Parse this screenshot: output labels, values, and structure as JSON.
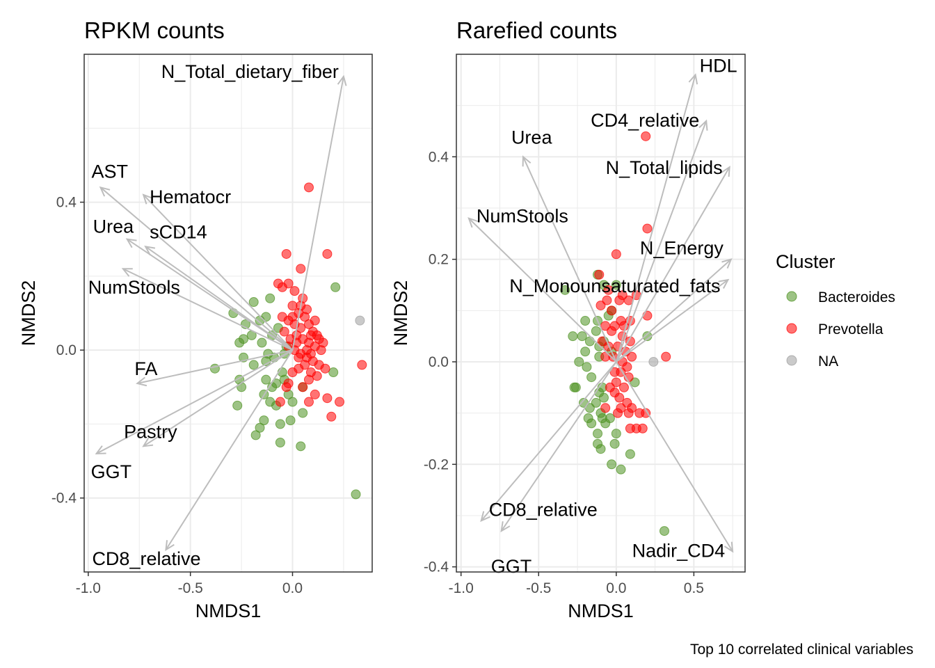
{
  "caption": "Top 10 correlated clinical variables",
  "legend": {
    "title": "Cluster",
    "placement": "right",
    "items": [
      {
        "label": "Bacteroides",
        "color": "#4d9221"
      },
      {
        "label": "Prevotella",
        "color": "#ff0000"
      },
      {
        "label": "NA",
        "color": "#9e9e9e"
      }
    ]
  },
  "chart_data": [
    {
      "type": "scatter",
      "title": "RPKM counts",
      "xlabel": "NMDS1",
      "ylabel": "NMDS2",
      "xticks": [
        -1.0,
        -0.5,
        0.0
      ],
      "xtick_labels": [
        "-1.0",
        "-0.5",
        "0.0"
      ],
      "yticks": [
        -0.4,
        0.0,
        0.4
      ],
      "ytick_labels": [
        "-0.4",
        "0.0",
        "0.4"
      ],
      "xlim": [
        -1.02,
        0.39
      ],
      "ylim": [
        -0.6,
        0.8
      ],
      "grid": true,
      "arrows": [
        {
          "label": "N_Total_dietary_fiber",
          "x": 0.25,
          "y": 0.74
        },
        {
          "label": "AST",
          "x": -0.94,
          "y": 0.44
        },
        {
          "label": "Hematocr",
          "x": -0.73,
          "y": 0.42
        },
        {
          "label": "Urea",
          "x": -0.81,
          "y": 0.3
        },
        {
          "label": "sCD14",
          "x": -0.72,
          "y": 0.28
        },
        {
          "label": "NumStools",
          "x": -0.83,
          "y": 0.22
        },
        {
          "label": "FA",
          "x": -0.76,
          "y": -0.09
        },
        {
          "label": "Pastry",
          "x": -0.73,
          "y": -0.26
        },
        {
          "label": "GGT",
          "x": -0.96,
          "y": -0.28
        },
        {
          "label": "CD8_relative",
          "x": -0.62,
          "y": -0.54
        }
      ],
      "series": [
        {
          "name": "Bacteroides",
          "points": [
            [
              -0.38,
              -0.05
            ],
            [
              -0.29,
              0.1
            ],
            [
              -0.19,
              0.13
            ],
            [
              -0.11,
              0.14
            ],
            [
              0.21,
              0.17
            ],
            [
              -0.26,
              0.02
            ],
            [
              -0.23,
              0.07
            ],
            [
              -0.24,
              0.03
            ],
            [
              -0.16,
              0.08
            ],
            [
              -0.13,
              0.09
            ],
            [
              -0.2,
              0.04
            ],
            [
              -0.24,
              -0.02
            ],
            [
              -0.19,
              -0.04
            ],
            [
              -0.13,
              -0.03
            ],
            [
              -0.09,
              -0.02
            ],
            [
              -0.12,
              -0.01
            ],
            [
              -0.04,
              -0.01
            ],
            [
              -0.26,
              -0.08
            ],
            [
              -0.25,
              -0.1
            ],
            [
              -0.13,
              -0.08
            ],
            [
              -0.1,
              -0.1
            ],
            [
              -0.08,
              -0.09
            ],
            [
              -0.05,
              -0.06
            ],
            [
              -0.04,
              -0.08
            ],
            [
              -0.02,
              -0.12
            ],
            [
              0.0,
              -0.14
            ],
            [
              -0.11,
              -0.14
            ],
            [
              -0.14,
              -0.12
            ],
            [
              -0.08,
              -0.15
            ],
            [
              -0.27,
              -0.15
            ],
            [
              -0.14,
              -0.19
            ],
            [
              -0.16,
              -0.21
            ],
            [
              -0.01,
              -0.19
            ],
            [
              0.05,
              -0.17
            ],
            [
              -0.06,
              -0.2
            ],
            [
              -0.18,
              -0.23
            ],
            [
              -0.06,
              -0.25
            ],
            [
              0.04,
              -0.26
            ],
            [
              0.2,
              -0.06
            ],
            [
              0.31,
              -0.39
            ],
            [
              -0.15,
              0.02
            ],
            [
              -0.03,
              0.01
            ],
            [
              -0.07,
              0.06
            ],
            [
              -0.1,
              0.04
            ],
            [
              0.05,
              -0.1
            ]
          ]
        },
        {
          "name": "Prevotella",
          "points": [
            [
              0.08,
              0.44
            ],
            [
              -0.03,
              0.26
            ],
            [
              0.04,
              0.22
            ],
            [
              0.17,
              0.26
            ],
            [
              -0.07,
              0.18
            ],
            [
              -0.05,
              0.17
            ],
            [
              -0.02,
              0.18
            ],
            [
              0.01,
              0.16
            ],
            [
              0.05,
              0.14
            ],
            [
              0.0,
              0.12
            ],
            [
              0.03,
              0.1
            ],
            [
              0.07,
              0.11
            ],
            [
              -0.05,
              0.09
            ],
            [
              -0.02,
              0.08
            ],
            [
              0.01,
              0.07
            ],
            [
              0.04,
              0.06
            ],
            [
              0.08,
              0.07
            ],
            [
              0.1,
              0.05
            ],
            [
              0.12,
              0.04
            ],
            [
              -0.04,
              0.05
            ],
            [
              0.02,
              0.04
            ],
            [
              0.05,
              0.03
            ],
            [
              0.08,
              0.02
            ],
            [
              0.11,
              0.01
            ],
            [
              0.14,
              0.0
            ],
            [
              -0.02,
              0.01
            ],
            [
              0.01,
              0.0
            ],
            [
              0.04,
              -0.01
            ],
            [
              0.07,
              -0.02
            ],
            [
              0.1,
              -0.03
            ],
            [
              0.13,
              -0.04
            ],
            [
              0.06,
              -0.04
            ],
            [
              0.03,
              -0.05
            ],
            [
              0.09,
              -0.06
            ],
            [
              0.12,
              -0.07
            ],
            [
              0.16,
              -0.05
            ],
            [
              0.34,
              -0.04
            ],
            [
              0.0,
              -0.06
            ],
            [
              0.08,
              -0.08
            ],
            [
              -0.02,
              -0.09
            ],
            [
              0.05,
              -0.1
            ],
            [
              0.11,
              -0.12
            ],
            [
              0.17,
              -0.13
            ],
            [
              0.23,
              -0.14
            ],
            [
              0.19,
              -0.18
            ],
            [
              0.08,
              -0.14
            ],
            [
              -0.06,
              -0.14
            ],
            [
              -0.03,
              -0.1
            ],
            [
              0.02,
              0.02
            ],
            [
              0.06,
              0.09
            ],
            [
              0.09,
              0.04
            ],
            [
              0.11,
              0.08
            ],
            [
              0.15,
              0.02
            ],
            [
              0.03,
              -0.02
            ],
            [
              0.07,
              0.0
            ],
            [
              0.13,
              0.03
            ],
            [
              -0.01,
              0.03
            ],
            [
              0.04,
              0.12
            ],
            [
              0.0,
              0.09
            ],
            [
              0.09,
              -0.01
            ]
          ]
        },
        {
          "name": "NA",
          "points": [
            [
              0.33,
              0.08
            ]
          ]
        }
      ]
    },
    {
      "type": "scatter",
      "title": "Rarefied counts",
      "xlabel": "NMDS1",
      "ylabel": "NMDS2",
      "xticks": [
        -1.0,
        -0.5,
        0.0,
        0.5
      ],
      "xtick_labels": [
        "-1.0",
        "-0.5",
        "0.0",
        "0.5"
      ],
      "yticks": [
        -0.4,
        -0.2,
        0.0,
        0.2,
        0.4
      ],
      "ytick_labels": [
        "-0.4",
        "-0.2",
        "0.0",
        "0.2",
        "0.4"
      ],
      "xlim": [
        -1.03,
        0.83
      ],
      "ylim": [
        -0.41,
        0.6
      ],
      "grid": true,
      "arrows": [
        {
          "label": "HDL",
          "x": 0.51,
          "y": 0.56
        },
        {
          "label": "CD4_relative",
          "x": 0.58,
          "y": 0.47
        },
        {
          "label": "Urea",
          "x": -0.6,
          "y": 0.4
        },
        {
          "label": "N_Total_lipids",
          "x": 0.73,
          "y": 0.38
        },
        {
          "label": "NumStools",
          "x": -0.95,
          "y": 0.28
        },
        {
          "label": "N_Energy",
          "x": 0.74,
          "y": 0.2
        },
        {
          "label": "N_Monounsaturated_fats",
          "x": 0.72,
          "y": 0.16
        },
        {
          "label": "CD8_relative",
          "x": -0.87,
          "y": -0.31
        },
        {
          "label": "GGT",
          "x": -0.74,
          "y": -0.33
        },
        {
          "label": "Nadir_CD4",
          "x": 0.75,
          "y": -0.37
        }
      ],
      "series": [
        {
          "name": "Bacteroides",
          "points": [
            [
              -0.33,
              0.14
            ],
            [
              -0.12,
              0.17
            ],
            [
              -0.08,
              0.15
            ],
            [
              0.0,
              0.15
            ],
            [
              -0.2,
              0.08
            ],
            [
              -0.12,
              0.08
            ],
            [
              -0.05,
              0.09
            ],
            [
              -0.03,
              0.1
            ],
            [
              -0.13,
              0.06
            ],
            [
              -0.22,
              0.05
            ],
            [
              -0.28,
              0.05
            ],
            [
              -0.17,
              0.04
            ],
            [
              -0.11,
              0.03
            ],
            [
              -0.08,
              0.04
            ],
            [
              -0.2,
              0.02
            ],
            [
              -0.24,
              0.0
            ],
            [
              -0.19,
              -0.01
            ],
            [
              -0.11,
              0.01
            ],
            [
              -0.03,
              0.02
            ],
            [
              -0.16,
              -0.03
            ],
            [
              -0.27,
              -0.05
            ],
            [
              -0.26,
              -0.05
            ],
            [
              -0.09,
              -0.05
            ],
            [
              -0.11,
              -0.06
            ],
            [
              -0.08,
              -0.07
            ],
            [
              -0.13,
              -0.08
            ],
            [
              -0.21,
              -0.08
            ],
            [
              -0.17,
              -0.09
            ],
            [
              -0.1,
              -0.1
            ],
            [
              -0.04,
              -0.11
            ],
            [
              -0.09,
              -0.11
            ],
            [
              -0.07,
              -0.12
            ],
            [
              -0.18,
              -0.11
            ],
            [
              -0.16,
              -0.12
            ],
            [
              -0.12,
              -0.14
            ],
            [
              0.0,
              -0.14
            ],
            [
              -0.01,
              -0.16
            ],
            [
              -0.12,
              -0.16
            ],
            [
              -0.1,
              -0.17
            ],
            [
              0.09,
              -0.18
            ],
            [
              -0.03,
              -0.2
            ],
            [
              0.03,
              -0.21
            ],
            [
              0.31,
              -0.33
            ],
            [
              0.2,
              0.05
            ],
            [
              0.12,
              -0.04
            ]
          ]
        },
        {
          "name": "Prevotella",
          "points": [
            [
              0.19,
              0.44
            ],
            [
              0.2,
              0.26
            ],
            [
              0.0,
              0.21
            ],
            [
              -0.11,
              0.17
            ],
            [
              -0.05,
              0.14
            ],
            [
              0.04,
              0.13
            ],
            [
              -0.1,
              0.11
            ],
            [
              -0.06,
              0.12
            ],
            [
              0.02,
              0.12
            ],
            [
              0.08,
              0.12
            ],
            [
              0.13,
              0.13
            ],
            [
              -0.03,
              0.1
            ],
            [
              0.03,
              0.08
            ],
            [
              0.09,
              0.08
            ],
            [
              -0.07,
              0.07
            ],
            [
              -0.01,
              0.07
            ],
            [
              0.05,
              0.07
            ],
            [
              0.2,
              0.09
            ],
            [
              -0.03,
              0.06
            ],
            [
              0.04,
              0.05
            ],
            [
              0.09,
              0.04
            ],
            [
              -0.09,
              0.04
            ],
            [
              -0.05,
              0.03
            ],
            [
              0.01,
              0.03
            ],
            [
              0.06,
              0.02
            ],
            [
              0.1,
              0.01
            ],
            [
              -0.07,
              0.01
            ],
            [
              -0.02,
              0.01
            ],
            [
              0.04,
              0.0
            ],
            [
              0.07,
              -0.01
            ],
            [
              0.32,
              0.01
            ],
            [
              -0.01,
              -0.02
            ],
            [
              0.03,
              -0.02
            ],
            [
              0.08,
              -0.03
            ],
            [
              0.0,
              -0.04
            ],
            [
              0.05,
              -0.05
            ],
            [
              -0.04,
              -0.05
            ],
            [
              -0.01,
              -0.06
            ],
            [
              0.02,
              -0.07
            ],
            [
              0.07,
              -0.08
            ],
            [
              0.1,
              -0.09
            ],
            [
              0.15,
              -0.1
            ],
            [
              0.19,
              -0.1
            ],
            [
              0.08,
              -0.1
            ],
            [
              0.03,
              -0.09
            ],
            [
              0.09,
              -0.13
            ],
            [
              0.13,
              -0.13
            ],
            [
              0.17,
              -0.13
            ],
            [
              -0.07,
              -0.09
            ],
            [
              0.01,
              -0.1
            ]
          ]
        },
        {
          "name": "NA",
          "points": [
            [
              0.24,
              0.0
            ]
          ]
        }
      ]
    }
  ]
}
